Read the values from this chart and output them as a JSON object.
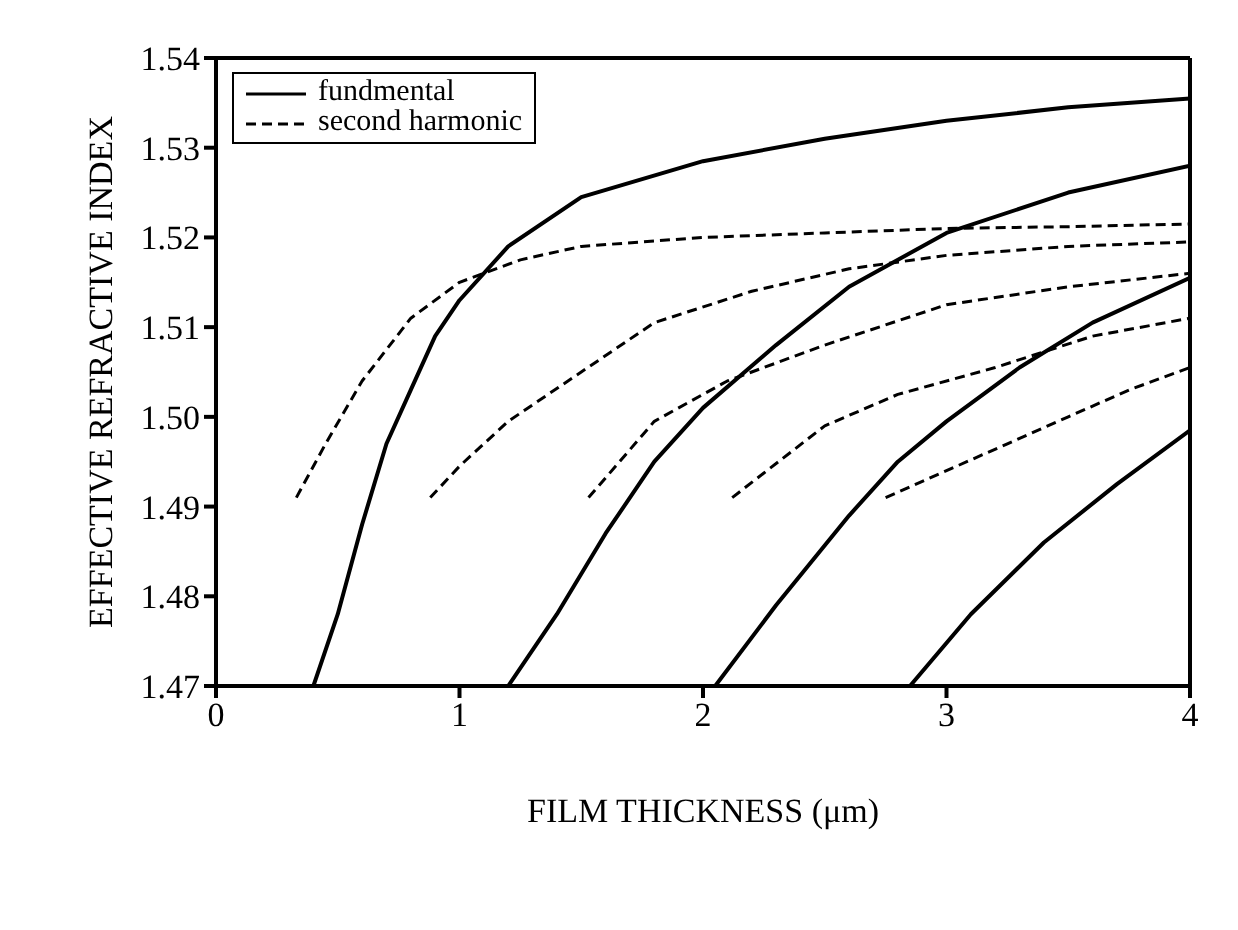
{
  "chart_data": {
    "type": "line",
    "xlabel": "FILM THICKNESS (μm)",
    "ylabel": "EFFECTIVE REFRACTIVE INDEX",
    "xlim": [
      0,
      4
    ],
    "xticks": [
      0,
      1,
      2,
      3,
      4
    ],
    "ylim": [
      1.47,
      1.54
    ],
    "yticks": [
      1.47,
      1.48,
      1.49,
      {
        "value": 1.5,
        "label": "1.50"
      },
      1.51,
      1.52,
      1.53,
      1.54
    ],
    "legend": "top left",
    "marker": "none",
    "series": [
      {
        "name": "fundmental",
        "color": "#000000",
        "line_style": "solid",
        "x": [
          0.4,
          0.5,
          0.6,
          0.7,
          0.8,
          0.9,
          1.0,
          1.2,
          1.5,
          2.0,
          2.5,
          3.0,
          3.5,
          4.0
        ],
        "values": [
          1.47,
          1.478,
          1.488,
          1.497,
          1.503,
          1.509,
          1.513,
          1.519,
          1.5245,
          1.5285,
          1.531,
          1.533,
          1.5345,
          1.5355
        ]
      },
      {
        "color": "#000000",
        "line_style": "solid",
        "x": [
          1.2,
          1.4,
          1.6,
          1.8,
          2.0,
          2.3,
          2.6,
          3.0,
          3.5,
          4.0
        ],
        "values": [
          1.47,
          1.478,
          1.487,
          1.495,
          1.501,
          1.508,
          1.5145,
          1.5205,
          1.525,
          1.528
        ]
      },
      {
        "color": "#000000",
        "line_style": "solid",
        "x": [
          2.05,
          2.3,
          2.6,
          2.8,
          3.0,
          3.3,
          3.6,
          4.0
        ],
        "values": [
          1.47,
          1.479,
          1.489,
          1.495,
          1.4995,
          1.5055,
          1.5105,
          1.5155
        ]
      },
      {
        "color": "#000000",
        "line_style": "solid",
        "x": [
          2.85,
          3.1,
          3.4,
          3.7,
          4.0
        ],
        "values": [
          1.47,
          1.478,
          1.486,
          1.4925,
          1.4985
        ]
      },
      {
        "name": "second harmonic",
        "color": "#000000",
        "line_style": "dashed",
        "x": [
          0.33,
          0.45,
          0.6,
          0.8,
          1.0,
          1.25,
          1.5,
          2.0,
          2.5,
          3.0,
          3.5,
          4.0
        ],
        "values": [
          1.491,
          1.497,
          1.504,
          1.511,
          1.515,
          1.5175,
          1.519,
          1.52,
          1.5205,
          1.521,
          1.5212,
          1.5215
        ]
      },
      {
        "color": "#000000",
        "line_style": "dashed",
        "x": [
          0.88,
          1.0,
          1.2,
          1.5,
          1.8,
          2.2,
          2.6,
          3.0,
          3.5,
          4.0
        ],
        "values": [
          1.491,
          1.4945,
          1.4995,
          1.505,
          1.5105,
          1.514,
          1.5165,
          1.518,
          1.519,
          1.5195
        ]
      },
      {
        "color": "#000000",
        "line_style": "dashed",
        "x": [
          1.53,
          1.8,
          2.1,
          2.5,
          3.0,
          3.5,
          4.0
        ],
        "values": [
          1.491,
          1.4995,
          1.504,
          1.508,
          1.5125,
          1.5145,
          1.516
        ]
      },
      {
        "color": "#000000",
        "line_style": "dashed",
        "x": [
          2.12,
          2.5,
          2.8,
          3.2,
          3.6,
          4.0
        ],
        "values": [
          1.491,
          1.499,
          1.5025,
          1.5055,
          1.509,
          1.511
        ]
      },
      {
        "color": "#000000",
        "line_style": "dashed",
        "x": [
          2.75,
          3.0,
          3.25,
          3.5,
          3.75,
          4.0
        ],
        "values": [
          1.491,
          1.494,
          1.497,
          1.5,
          1.503,
          1.5055
        ]
      }
    ]
  }
}
